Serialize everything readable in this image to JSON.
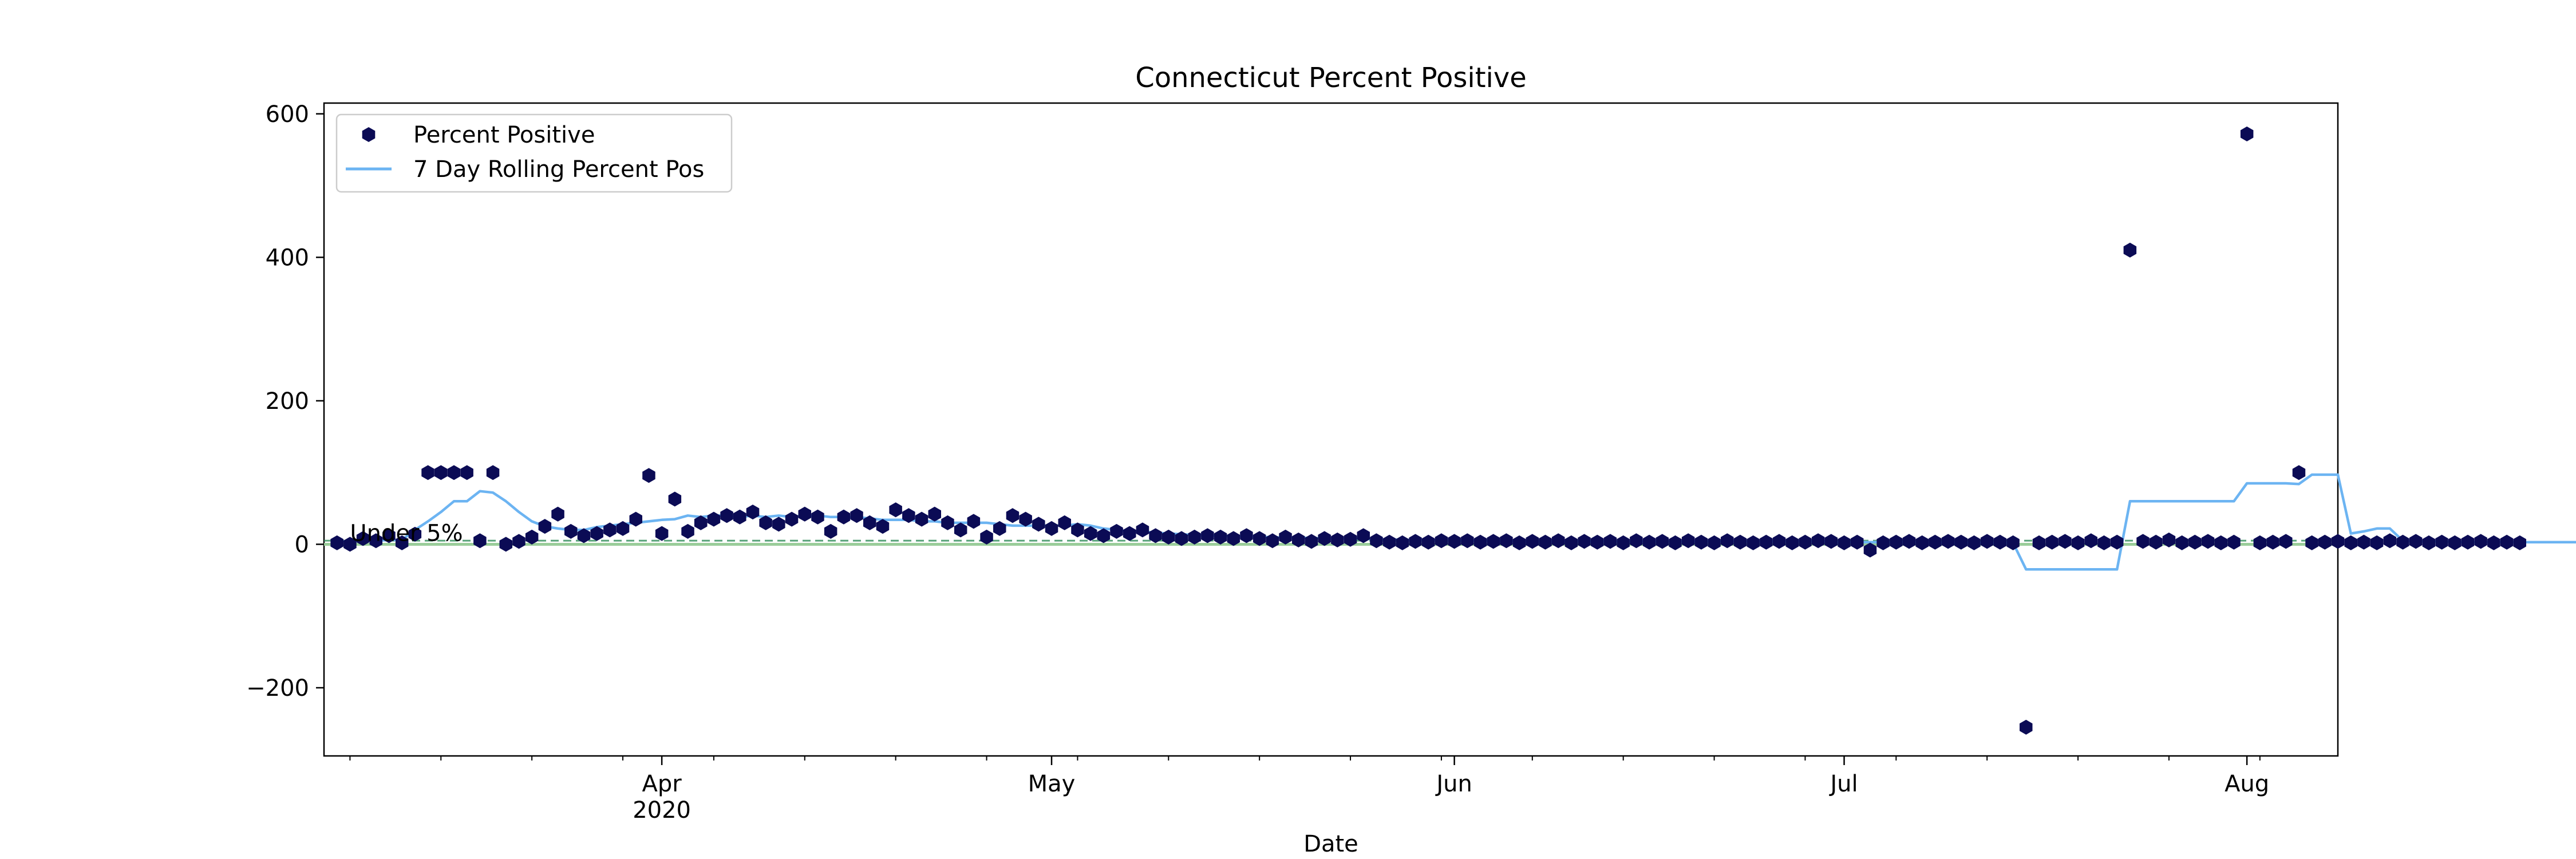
{
  "chart_data": {
    "type": "scatter",
    "title": "Connecticut Percent Positive",
    "xlabel": "Date",
    "ylabel": "",
    "xlim": [
      "2020-03-06",
      "2020-08-08"
    ],
    "ylim": [
      -295,
      615
    ],
    "x_ticks": [
      {
        "date": "2020-04-01",
        "label": "Apr",
        "sublabel": "2020"
      },
      {
        "date": "2020-05-01",
        "label": "May",
        "sublabel": ""
      },
      {
        "date": "2020-06-01",
        "label": "Jun",
        "sublabel": ""
      },
      {
        "date": "2020-07-01",
        "label": "Jul",
        "sublabel": ""
      },
      {
        "date": "2020-08-01",
        "label": "Aug",
        "sublabel": ""
      }
    ],
    "y_ticks": [
      -200,
      0,
      200,
      400,
      600
    ],
    "legend_position": "top-left",
    "grid": false,
    "annotation": {
      "text": "Under 5%",
      "date": "2020-03-08",
      "y": 3
    },
    "threshold": {
      "y": 5,
      "color": "#2e8b57",
      "style": "dashed"
    },
    "zero_line": {
      "y": 0,
      "color": "#9acd9a"
    },
    "colors": {
      "points": "#0b0b55",
      "rolling": "#6cb4f2"
    },
    "series": [
      {
        "name": "Percent Positive",
        "kind": "points",
        "start_date": "2020-03-07",
        "values": [
          2,
          0,
          8,
          5,
          12,
          2,
          14,
          100,
          100,
          100,
          100,
          5,
          100,
          0,
          4,
          10,
          25,
          42,
          18,
          12,
          15,
          20,
          22,
          35,
          96,
          15,
          63,
          18,
          30,
          35,
          40,
          38,
          45,
          30,
          28,
          35,
          42,
          38,
          18,
          38,
          40,
          30,
          25,
          48,
          40,
          35,
          42,
          30,
          20,
          32,
          10,
          22,
          40,
          35,
          28,
          22,
          30,
          20,
          15,
          12,
          18,
          15,
          20,
          12,
          10,
          8,
          10,
          12,
          10,
          8,
          12,
          8,
          5,
          10,
          6,
          4,
          8,
          6,
          7,
          12,
          5,
          3,
          2,
          4,
          3,
          5,
          4,
          5,
          3,
          4,
          5,
          2,
          4,
          3,
          5,
          2,
          4,
          3,
          4,
          2,
          5,
          3,
          4,
          2,
          5,
          3,
          2,
          5,
          3,
          2,
          3,
          4,
          2,
          3,
          5,
          4,
          2,
          3,
          -8,
          2,
          3,
          4,
          2,
          3,
          4,
          3,
          2,
          4,
          3,
          2,
          -255,
          2,
          3,
          4,
          2,
          5,
          2,
          3,
          410,
          4,
          3,
          6,
          2,
          3,
          4,
          2,
          3,
          572,
          2,
          3,
          4,
          100,
          2,
          3,
          4,
          2,
          3,
          2,
          5,
          3,
          4,
          2,
          3,
          2,
          3,
          4,
          2,
          3,
          2
        ]
      },
      {
        "name": "7 Day Rolling Percent Pos",
        "kind": "line",
        "start_date": "2020-03-07",
        "values": [
          4,
          4,
          4,
          5,
          6,
          6,
          20,
          32,
          45,
          60,
          60,
          74,
          72,
          60,
          45,
          32,
          25,
          22,
          20,
          20,
          24,
          26,
          28,
          30,
          32,
          34,
          35,
          40,
          38,
          40,
          40,
          38,
          40,
          38,
          40,
          38,
          40,
          40,
          38,
          38,
          38,
          36,
          34,
          34,
          34,
          32,
          32,
          30,
          30,
          30,
          30,
          28,
          26,
          26,
          26,
          26,
          26,
          28,
          26,
          22,
          20,
          18,
          18,
          16,
          15,
          14,
          13,
          12,
          12,
          11,
          11,
          10,
          10,
          9,
          9,
          9,
          8,
          8,
          8,
          8,
          7,
          7,
          6,
          6,
          6,
          5,
          5,
          5,
          5,
          5,
          5,
          4,
          4,
          4,
          4,
          4,
          4,
          4,
          4,
          4,
          4,
          4,
          4,
          4,
          4,
          4,
          4,
          4,
          4,
          4,
          4,
          4,
          4,
          4,
          4,
          3,
          3,
          3,
          3,
          3,
          3,
          3,
          3,
          2,
          2,
          2,
          2,
          2,
          2,
          2,
          -35,
          -35,
          -35,
          -35,
          -35,
          -35,
          -35,
          -35,
          60,
          60,
          60,
          60,
          60,
          60,
          60,
          60,
          60,
          85,
          85,
          85,
          85,
          84,
          97,
          97,
          97,
          15,
          18,
          22,
          22,
          5,
          4,
          4,
          4,
          3,
          3,
          3,
          3,
          3,
          3,
          3,
          3,
          3,
          3,
          3,
          3
        ]
      }
    ]
  }
}
